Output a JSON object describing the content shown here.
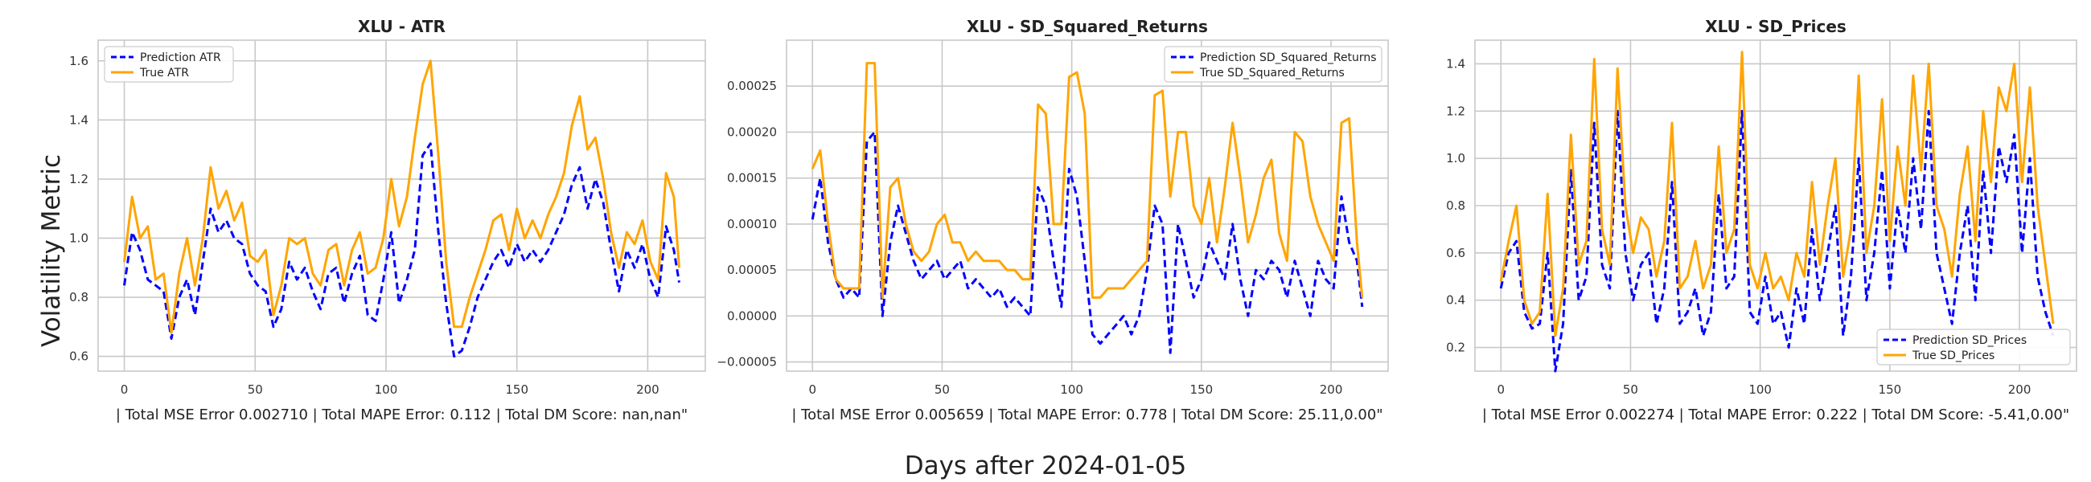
{
  "figure": {
    "ylabel": "Volatility Metric",
    "xlabel": "Days after 2024-01-05"
  },
  "chart_data": [
    {
      "type": "line",
      "title": "XLU - ATR",
      "xlabel": "| Total MSE Error 0.002710 | Total MAPE Error: 0.112 | Total DM Score: nan,nan\"",
      "ylabel": "",
      "xlim": [
        -10,
        222
      ],
      "ylim": [
        0.55,
        1.67
      ],
      "xticks": [
        0,
        50,
        100,
        150,
        200
      ],
      "yticks": [
        0.6,
        0.8,
        1.0,
        1.2,
        1.4,
        1.6
      ],
      "ytick_labels": [
        "0.6",
        "0.8",
        "1.0",
        "1.2",
        "1.4",
        "1.6"
      ],
      "grid": true,
      "legend_position": "top-left",
      "series": [
        {
          "name": "Prediction ATR",
          "color": "#0000ff",
          "style": "dashed",
          "x": [
            0,
            3,
            6,
            9,
            12,
            15,
            18,
            21,
            24,
            27,
            30,
            33,
            36,
            39,
            42,
            45,
            48,
            51,
            54,
            57,
            60,
            63,
            66,
            69,
            72,
            75,
            78,
            81,
            84,
            87,
            90,
            93,
            96,
            99,
            102,
            105,
            108,
            111,
            114,
            117,
            120,
            123,
            126,
            129,
            132,
            135,
            138,
            141,
            144,
            147,
            150,
            153,
            156,
            159,
            162,
            165,
            168,
            171,
            174,
            177,
            180,
            183,
            186,
            189,
            192,
            195,
            198,
            201,
            204,
            207,
            210,
            212
          ],
          "y": [
            0.84,
            1.02,
            0.96,
            0.86,
            0.84,
            0.82,
            0.66,
            0.8,
            0.86,
            0.74,
            0.92,
            1.1,
            1.02,
            1.06,
            1.0,
            0.98,
            0.88,
            0.84,
            0.82,
            0.7,
            0.76,
            0.92,
            0.86,
            0.9,
            0.82,
            0.76,
            0.88,
            0.9,
            0.78,
            0.88,
            0.94,
            0.74,
            0.72,
            0.86,
            1.02,
            0.78,
            0.86,
            0.96,
            1.28,
            1.32,
            1.02,
            0.78,
            0.6,
            0.62,
            0.7,
            0.8,
            0.86,
            0.92,
            0.96,
            0.9,
            0.98,
            0.92,
            0.96,
            0.92,
            0.96,
            1.02,
            1.08,
            1.18,
            1.24,
            1.1,
            1.2,
            1.12,
            0.96,
            0.82,
            0.96,
            0.9,
            0.98,
            0.86,
            0.8,
            1.04,
            0.96,
            0.85
          ]
        },
        {
          "name": "True ATR",
          "color": "#ffa500",
          "style": "solid",
          "x": [
            0,
            3,
            6,
            9,
            12,
            15,
            18,
            21,
            24,
            27,
            30,
            33,
            36,
            39,
            42,
            45,
            48,
            51,
            54,
            57,
            60,
            63,
            66,
            69,
            72,
            75,
            78,
            81,
            84,
            87,
            90,
            93,
            96,
            99,
            102,
            105,
            108,
            111,
            114,
            117,
            120,
            123,
            126,
            129,
            132,
            135,
            138,
            141,
            144,
            147,
            150,
            153,
            156,
            159,
            162,
            165,
            168,
            171,
            174,
            177,
            180,
            183,
            186,
            189,
            192,
            195,
            198,
            201,
            204,
            207,
            210,
            212
          ],
          "y": [
            0.92,
            1.14,
            1.0,
            1.04,
            0.86,
            0.88,
            0.68,
            0.88,
            1.0,
            0.84,
            1.0,
            1.24,
            1.1,
            1.16,
            1.06,
            1.12,
            0.94,
            0.92,
            0.96,
            0.74,
            0.84,
            1.0,
            0.98,
            1.0,
            0.88,
            0.84,
            0.96,
            0.98,
            0.84,
            0.96,
            1.02,
            0.88,
            0.9,
            1.0,
            1.2,
            1.04,
            1.14,
            1.34,
            1.52,
            1.6,
            1.28,
            0.92,
            0.7,
            0.7,
            0.8,
            0.88,
            0.96,
            1.06,
            1.08,
            0.96,
            1.1,
            1.0,
            1.06,
            1.0,
            1.08,
            1.14,
            1.22,
            1.38,
            1.48,
            1.3,
            1.34,
            1.2,
            1.02,
            0.9,
            1.02,
            0.98,
            1.06,
            0.92,
            0.86,
            1.22,
            1.14,
            0.9
          ]
        }
      ]
    },
    {
      "type": "line",
      "title": "XLU - SD_Squared_Returns",
      "xlabel": "| Total MSE Error 0.005659 | Total MAPE Error: 0.778 | Total DM Score: 25.11,0.00\"",
      "ylabel": "",
      "xlim": [
        -10,
        222
      ],
      "ylim": [
        -6e-05,
        0.0003
      ],
      "xticks": [
        0,
        50,
        100,
        150,
        200
      ],
      "yticks": [
        -5e-05,
        0.0,
        5e-05,
        0.0001,
        0.00015,
        0.0002,
        0.00025
      ],
      "ytick_labels": [
        "−0.00005",
        "0.00000",
        "0.00005",
        "0.00010",
        "0.00015",
        "0.00020",
        "0.00025"
      ],
      "grid": true,
      "legend_position": "top-right",
      "series": [
        {
          "name": "Prediction SD_Squared_Returns",
          "color": "#0000ff",
          "style": "dashed",
          "x": [
            0,
            3,
            6,
            9,
            12,
            15,
            18,
            21,
            24,
            27,
            30,
            33,
            36,
            39,
            42,
            45,
            48,
            51,
            54,
            57,
            60,
            63,
            66,
            69,
            72,
            75,
            78,
            81,
            84,
            87,
            90,
            93,
            96,
            99,
            102,
            105,
            108,
            111,
            114,
            117,
            120,
            123,
            126,
            129,
            132,
            135,
            138,
            141,
            144,
            147,
            150,
            153,
            156,
            159,
            162,
            165,
            168,
            171,
            174,
            177,
            180,
            183,
            186,
            189,
            192,
            195,
            198,
            201,
            204,
            207,
            210,
            212
          ],
          "y": [
            0.000105,
            0.00015,
            8e-05,
            4e-05,
            2e-05,
            3e-05,
            2e-05,
            0.00019,
            0.0002,
            0.0,
            8e-05,
            0.00012,
            9e-05,
            6e-05,
            4e-05,
            5e-05,
            6e-05,
            4e-05,
            5e-05,
            6e-05,
            3e-05,
            4e-05,
            3e-05,
            2e-05,
            3e-05,
            1e-05,
            2e-05,
            1e-05,
            0.0,
            0.00014,
            0.00012,
            6e-05,
            1e-05,
            0.00016,
            0.00013,
            6e-05,
            -2e-05,
            -3e-05,
            -2e-05,
            -1e-05,
            0.0,
            -2e-05,
            0.0,
            5e-05,
            0.00012,
            0.0001,
            -4e-05,
            0.0001,
            6e-05,
            2e-05,
            4e-05,
            8e-05,
            6e-05,
            4e-05,
            0.0001,
            4e-05,
            0.0,
            5e-05,
            4e-05,
            6e-05,
            5e-05,
            2e-05,
            6e-05,
            3e-05,
            0.0,
            6e-05,
            4e-05,
            3e-05,
            0.00013,
            8e-05,
            6e-05,
            1e-05
          ]
        },
        {
          "name": "True SD_Squared_Returns",
          "color": "#ffa500",
          "style": "solid",
          "x": [
            0,
            3,
            6,
            9,
            12,
            15,
            18,
            21,
            24,
            27,
            30,
            33,
            36,
            39,
            42,
            45,
            48,
            51,
            54,
            57,
            60,
            63,
            66,
            69,
            72,
            75,
            78,
            81,
            84,
            87,
            90,
            93,
            96,
            99,
            102,
            105,
            108,
            111,
            114,
            117,
            120,
            123,
            126,
            129,
            132,
            135,
            138,
            141,
            144,
            147,
            150,
            153,
            156,
            159,
            162,
            165,
            168,
            171,
            174,
            177,
            180,
            183,
            186,
            189,
            192,
            195,
            198,
            201,
            204,
            207,
            210,
            212
          ],
          "y": [
            0.00016,
            0.00018,
            0.0001,
            4e-05,
            3e-05,
            3e-05,
            3e-05,
            0.000275,
            0.000275,
            2e-05,
            0.00014,
            0.00015,
            0.0001,
            7e-05,
            6e-05,
            7e-05,
            0.0001,
            0.00011,
            8e-05,
            8e-05,
            6e-05,
            7e-05,
            6e-05,
            6e-05,
            6e-05,
            5e-05,
            5e-05,
            4e-05,
            4e-05,
            0.00023,
            0.00022,
            0.0001,
            0.0001,
            0.00026,
            0.000265,
            0.00022,
            2e-05,
            2e-05,
            3e-05,
            3e-05,
            3e-05,
            4e-05,
            5e-05,
            6e-05,
            0.00024,
            0.000245,
            0.00013,
            0.0002,
            0.0002,
            0.00012,
            0.0001,
            0.00015,
            8e-05,
            0.00014,
            0.00021,
            0.00015,
            8e-05,
            0.00011,
            0.00015,
            0.00017,
            9e-05,
            6e-05,
            0.0002,
            0.00019,
            0.00013,
            0.0001,
            8e-05,
            6e-05,
            0.00021,
            0.000215,
            8e-05,
            2e-05
          ]
        }
      ]
    },
    {
      "type": "line",
      "title": "XLU - SD_Prices",
      "xlabel": "| Total MSE Error 0.002274 | Total MAPE Error: 0.222 | Total DM Score: -5.41,0.00\"",
      "ylabel": "",
      "xlim": [
        -10,
        222
      ],
      "ylim": [
        0.1,
        1.5
      ],
      "xticks": [
        0,
        50,
        100,
        150,
        200
      ],
      "yticks": [
        0.2,
        0.4,
        0.6,
        0.8,
        1.0,
        1.2,
        1.4
      ],
      "ytick_labels": [
        "0.2",
        "0.4",
        "0.6",
        "0.8",
        "1.0",
        "1.2",
        "1.4"
      ],
      "grid": true,
      "legend_position": "bottom-right",
      "series": [
        {
          "name": "Prediction SD_Prices",
          "color": "#0000ff",
          "style": "dashed",
          "x": [
            0,
            3,
            6,
            9,
            12,
            15,
            18,
            21,
            24,
            27,
            30,
            33,
            36,
            39,
            42,
            45,
            48,
            51,
            54,
            57,
            60,
            63,
            66,
            69,
            72,
            75,
            78,
            81,
            84,
            87,
            90,
            93,
            96,
            99,
            102,
            105,
            108,
            111,
            114,
            117,
            120,
            123,
            126,
            129,
            132,
            135,
            138,
            141,
            144,
            147,
            150,
            153,
            156,
            159,
            162,
            165,
            168,
            171,
            174,
            177,
            180,
            183,
            186,
            189,
            192,
            195,
            198,
            201,
            204,
            207,
            210,
            213
          ],
          "y": [
            0.45,
            0.6,
            0.65,
            0.35,
            0.28,
            0.3,
            0.6,
            0.1,
            0.3,
            0.95,
            0.4,
            0.5,
            1.15,
            0.55,
            0.45,
            1.2,
            0.6,
            0.4,
            0.55,
            0.6,
            0.3,
            0.45,
            0.9,
            0.3,
            0.35,
            0.45,
            0.25,
            0.35,
            0.85,
            0.45,
            0.5,
            1.2,
            0.35,
            0.3,
            0.5,
            0.3,
            0.35,
            0.2,
            0.45,
            0.3,
            0.7,
            0.4,
            0.6,
            0.8,
            0.25,
            0.5,
            1.0,
            0.4,
            0.6,
            0.95,
            0.45,
            0.8,
            0.6,
            1.0,
            0.7,
            1.2,
            0.6,
            0.45,
            0.3,
            0.6,
            0.8,
            0.4,
            0.95,
            0.6,
            1.05,
            0.9,
            1.1,
            0.6,
            1.0,
            0.5,
            0.35,
            0.25
          ]
        },
        {
          "name": "True SD_Prices",
          "color": "#ffa500",
          "style": "solid",
          "x": [
            0,
            3,
            6,
            9,
            12,
            15,
            18,
            21,
            24,
            27,
            30,
            33,
            36,
            39,
            42,
            45,
            48,
            51,
            54,
            57,
            60,
            63,
            66,
            69,
            72,
            75,
            78,
            81,
            84,
            87,
            90,
            93,
            96,
            99,
            102,
            105,
            108,
            111,
            114,
            117,
            120,
            123,
            126,
            129,
            132,
            135,
            138,
            141,
            144,
            147,
            150,
            153,
            156,
            159,
            162,
            165,
            168,
            171,
            174,
            177,
            180,
            183,
            186,
            189,
            192,
            195,
            198,
            201,
            204,
            207,
            210,
            213
          ],
          "y": [
            0.48,
            0.65,
            0.8,
            0.4,
            0.3,
            0.35,
            0.85,
            0.25,
            0.45,
            1.1,
            0.55,
            0.65,
            1.42,
            0.7,
            0.55,
            1.38,
            0.8,
            0.6,
            0.75,
            0.7,
            0.5,
            0.65,
            1.15,
            0.45,
            0.5,
            0.65,
            0.45,
            0.55,
            1.05,
            0.6,
            0.7,
            1.45,
            0.55,
            0.45,
            0.6,
            0.45,
            0.5,
            0.4,
            0.6,
            0.5,
            0.9,
            0.55,
            0.8,
            1.0,
            0.5,
            0.7,
            1.35,
            0.6,
            0.8,
            1.25,
            0.65,
            1.05,
            0.8,
            1.35,
            0.95,
            1.4,
            0.8,
            0.7,
            0.5,
            0.85,
            1.05,
            0.65,
            1.2,
            0.9,
            1.3,
            1.2,
            1.4,
            0.9,
            1.3,
            0.8,
            0.55,
            0.3
          ]
        }
      ]
    }
  ]
}
